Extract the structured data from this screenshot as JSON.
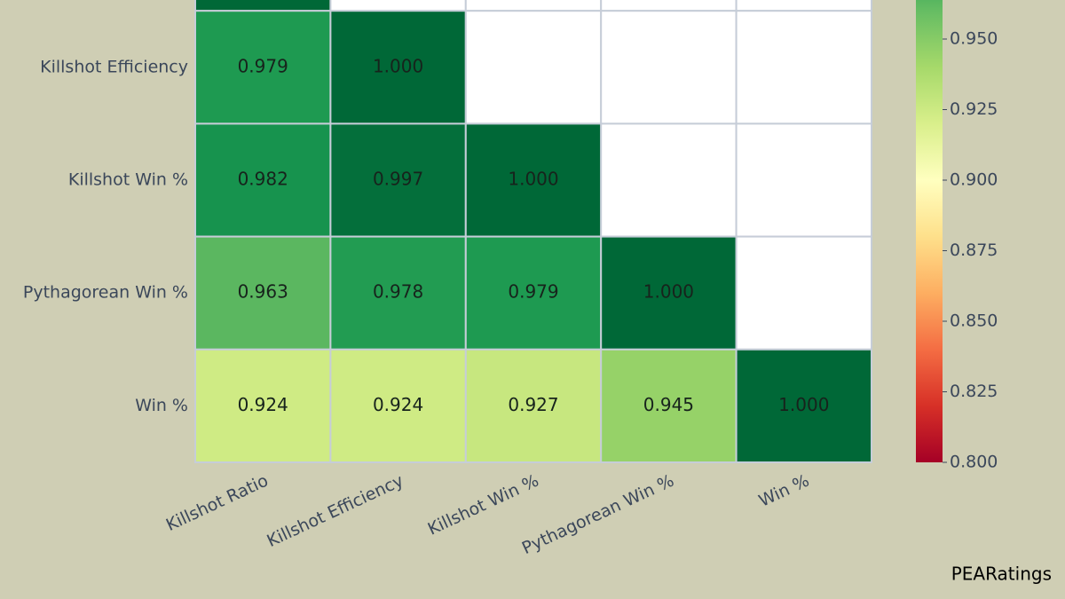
{
  "chart_data": {
    "type": "heatmap",
    "x_categories": [
      "Killshot Ratio",
      "Killshot Efficiency",
      "Killshot Win %",
      "Pythagorean Win %",
      "Win %"
    ],
    "y_categories": [
      null,
      "Killshot Efficiency",
      "Killshot Win %",
      "Pythagorean Win %",
      "Win %"
    ],
    "values": [
      [
        1.0,
        null,
        null,
        null,
        null
      ],
      [
        0.979,
        1.0,
        null,
        null,
        null
      ],
      [
        0.982,
        0.997,
        1.0,
        null,
        null
      ],
      [
        0.963,
        0.978,
        0.979,
        1.0,
        null
      ],
      [
        0.924,
        0.924,
        0.927,
        0.945,
        1.0
      ]
    ],
    "value_labels": [
      [
        null,
        null,
        null,
        null,
        null
      ],
      [
        "0.979",
        "1.000",
        null,
        null,
        null
      ],
      [
        "0.982",
        "0.997",
        "1.000",
        null,
        null
      ],
      [
        "0.963",
        "0.978",
        "0.979",
        "1.000",
        null
      ],
      [
        "0.924",
        "0.924",
        "0.927",
        "0.945",
        "1.000"
      ]
    ],
    "colormap": "RdYlGn",
    "clim": [
      0.8,
      1.0
    ],
    "cticks": [
      {
        "value": 0.8,
        "label": "0.800"
      },
      {
        "value": 0.825,
        "label": "0.825"
      },
      {
        "value": 0.85,
        "label": "0.850"
      },
      {
        "value": 0.875,
        "label": "0.875"
      },
      {
        "value": 0.9,
        "label": "0.900"
      },
      {
        "value": 0.925,
        "label": "0.925"
      },
      {
        "value": 0.95,
        "label": "0.950"
      }
    ],
    "watermark": "PEARatings"
  }
}
